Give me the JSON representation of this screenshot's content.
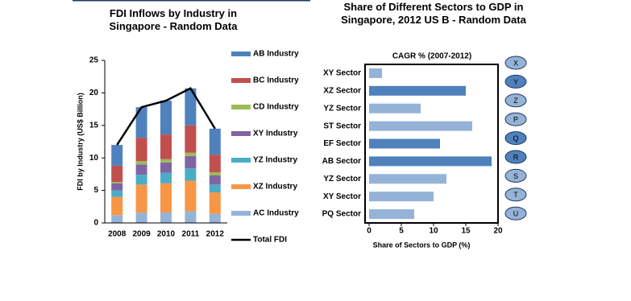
{
  "chart_data": [
    {
      "type": "stacked-bar",
      "title": "FDI Inflows by Industry in Singapore - Random Data",
      "y_label": "FDI by Industry (US$ Billion)",
      "categories": [
        "2008",
        "2009",
        "2010",
        "2011",
        "2012"
      ],
      "series": [
        {
          "name": "AB Industry",
          "color": "#4f81bd",
          "values": [
            3.2,
            4.7,
            5.2,
            5.7,
            4.0
          ]
        },
        {
          "name": "BC Industry",
          "color": "#c0504d",
          "values": [
            2.5,
            3.6,
            3.8,
            4.2,
            2.7
          ]
        },
        {
          "name": "CD Industry",
          "color": "#9bbb59",
          "values": [
            0.2,
            0.5,
            0.5,
            0.5,
            0.5
          ]
        },
        {
          "name": "XY Industry",
          "color": "#8064a2",
          "values": [
            1.1,
            1.6,
            1.6,
            1.9,
            1.4
          ]
        },
        {
          "name": "YZ Industry",
          "color": "#4bacc6",
          "values": [
            1.0,
            1.5,
            1.6,
            1.9,
            1.2
          ]
        },
        {
          "name": "XZ Industry",
          "color": "#f79646",
          "values": [
            2.8,
            4.3,
            4.5,
            4.7,
            3.3
          ]
        },
        {
          "name": "AC Industry",
          "color": "#95b3d7",
          "values": [
            1.2,
            1.6,
            1.6,
            1.8,
            1.4
          ]
        }
      ],
      "line": {
        "name": "Total FDI",
        "color": "#000000",
        "values": [
          12.0,
          17.8,
          18.8,
          20.7,
          14.5
        ]
      },
      "ylim": [
        0,
        25
      ],
      "yticks": [
        0,
        5,
        10,
        15,
        20,
        25
      ]
    },
    {
      "type": "hbar",
      "title": "Share of Different Sectors to GDP in Singapore, 2012 US B - Random Data",
      "subtitle": "CAGR % (2007-2012)",
      "x_label": "Share of Sectors to GDP (%)",
      "categories": [
        "XY Sector",
        "XZ Sector",
        "YZ Sector",
        "ST Sector",
        "EF Sector",
        "AB Sector",
        "YZ Sector",
        "XY Sector",
        "PQ Sector"
      ],
      "values": [
        2,
        15,
        8,
        16,
        11,
        19,
        12,
        10,
        7
      ],
      "colors": [
        "#95b3d7",
        "#4f81bd",
        "#95b3d7",
        "#95b3d7",
        "#4f81bd",
        "#4f81bd",
        "#95b3d7",
        "#95b3d7",
        "#95b3d7"
      ],
      "markers": [
        "X",
        "Y",
        "Z",
        "P",
        "Q",
        "R",
        "S",
        "T",
        "U"
      ],
      "xlim": [
        0,
        20
      ],
      "xticks": [
        0,
        5,
        10,
        15,
        20
      ]
    }
  ]
}
